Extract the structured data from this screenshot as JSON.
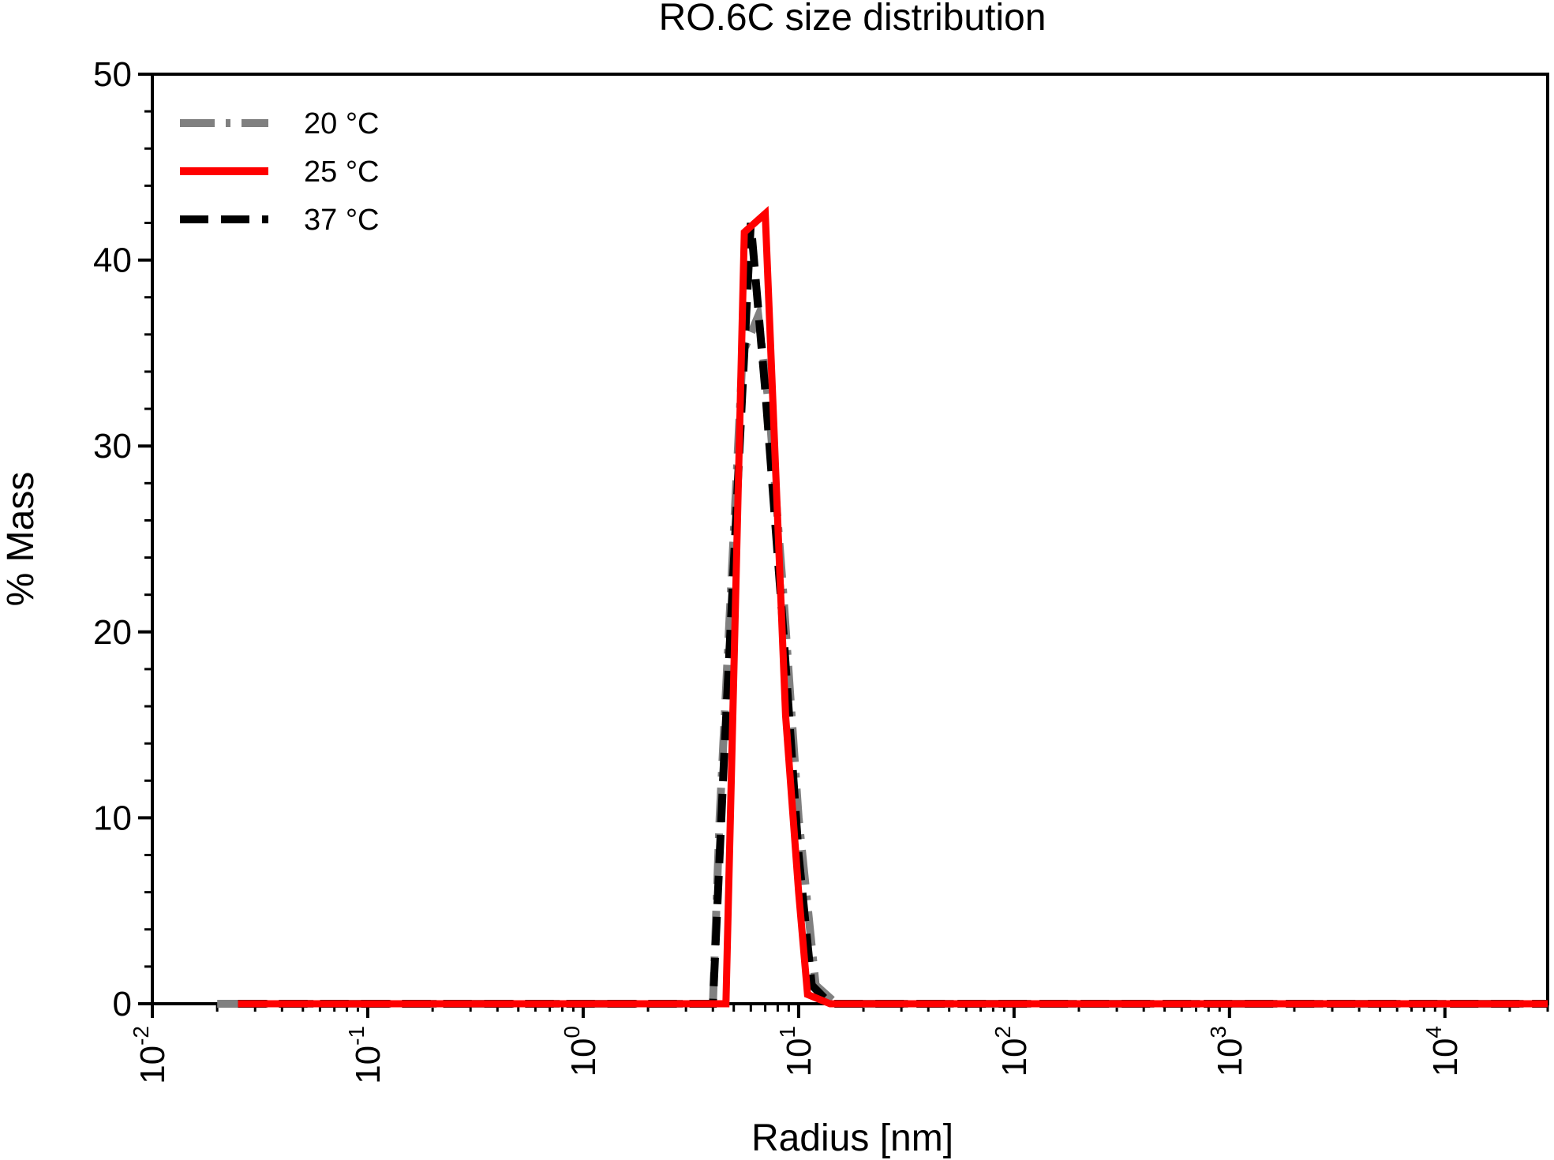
{
  "chart_data": {
    "type": "line",
    "title": "RO.6C size distribution",
    "xlabel": "Radius [nm]",
    "ylabel": "% Mass",
    "x_scale": "log",
    "xlim": [
      0.01,
      30000
    ],
    "ylim": [
      0,
      50
    ],
    "x_ticks": [
      {
        "base": "10",
        "exp": "-2",
        "value": 0.01
      },
      {
        "base": "10",
        "exp": "-1",
        "value": 0.1
      },
      {
        "base": "10",
        "exp": "0",
        "value": 1
      },
      {
        "base": "10",
        "exp": "1",
        "value": 10
      },
      {
        "base": "10",
        "exp": "2",
        "value": 100
      },
      {
        "base": "10",
        "exp": "3",
        "value": 1000
      },
      {
        "base": "10",
        "exp": "4",
        "value": 10000
      }
    ],
    "y_ticks": [
      "0",
      "10",
      "20",
      "30",
      "40",
      "50"
    ],
    "grid": false,
    "legend_position": "top-left",
    "series": [
      {
        "name": "20 °C",
        "color": "#808080",
        "line_style": "dash-dot",
        "points": [
          [
            0.02,
            0
          ],
          [
            1,
            0
          ],
          [
            4,
            0
          ],
          [
            4.3,
            10
          ],
          [
            5.5,
            35
          ],
          [
            6.5,
            37
          ],
          [
            7.3,
            32
          ],
          [
            8.5,
            22
          ],
          [
            10,
            10
          ],
          [
            12,
            1
          ],
          [
            15,
            0
          ],
          [
            30000,
            0
          ]
        ]
      },
      {
        "name": "25 °C",
        "color": "#ff0000",
        "line_style": "solid",
        "points": [
          [
            0.025,
            0
          ],
          [
            4.6,
            0
          ],
          [
            5.6,
            41.5
          ],
          [
            7,
            42.5
          ],
          [
            8.7,
            15.5
          ],
          [
            10,
            6
          ],
          [
            11,
            0.5
          ],
          [
            14,
            0
          ],
          [
            30000,
            0
          ]
        ]
      },
      {
        "name": "37 °C",
        "color": "#000000",
        "line_style": "dashed",
        "points": [
          [
            0.025,
            0
          ],
          [
            4,
            0
          ],
          [
            4.5,
            13
          ],
          [
            6,
            42
          ],
          [
            7,
            33
          ],
          [
            8.5,
            20
          ],
          [
            10,
            8
          ],
          [
            11.5,
            1
          ],
          [
            14,
            0
          ],
          [
            30000,
            0
          ]
        ]
      }
    ]
  }
}
